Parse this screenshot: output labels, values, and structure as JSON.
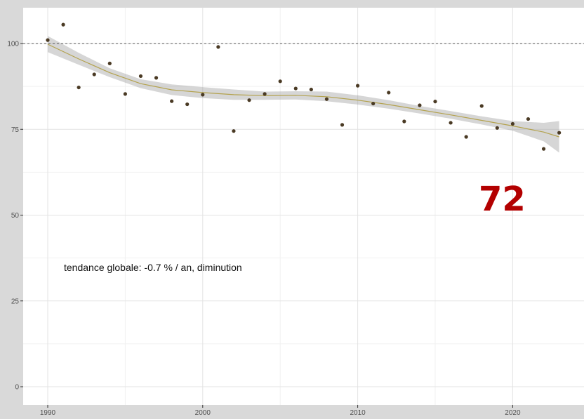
{
  "chart_data": {
    "type": "scatter",
    "title": "",
    "xlabel": "",
    "ylabel": "",
    "xlim": [
      1989,
      2024.5
    ],
    "ylim": [
      -3,
      103
    ],
    "x_ticks": [
      1990,
      2000,
      2010,
      2020
    ],
    "y_ticks": [
      0,
      25,
      50,
      75,
      100
    ],
    "grid": true,
    "reference_line": 100,
    "annotation": "tendance globale: -0.7 % / an, diminution",
    "badge": "72",
    "points": [
      {
        "x": 1990,
        "y": 101
      },
      {
        "x": 1991,
        "y": 105.5
      },
      {
        "x": 1992,
        "y": 87.2
      },
      {
        "x": 1993,
        "y": 91
      },
      {
        "x": 1994,
        "y": 94.2
      },
      {
        "x": 1995,
        "y": 85.3
      },
      {
        "x": 1996,
        "y": 90.5
      },
      {
        "x": 1997,
        "y": 90
      },
      {
        "x": 1998,
        "y": 83.2
      },
      {
        "x": 1999,
        "y": 82.3
      },
      {
        "x": 2000,
        "y": 85.1
      },
      {
        "x": 2001,
        "y": 99
      },
      {
        "x": 2002,
        "y": 74.5
      },
      {
        "x": 2003,
        "y": 83.5
      },
      {
        "x": 2004,
        "y": 85.3
      },
      {
        "x": 2005,
        "y": 89
      },
      {
        "x": 2006,
        "y": 86.9
      },
      {
        "x": 2007,
        "y": 86.6
      },
      {
        "x": 2008,
        "y": 83.8
      },
      {
        "x": 2009,
        "y": 76.3
      },
      {
        "x": 2010,
        "y": 87.7
      },
      {
        "x": 2011,
        "y": 82.5
      },
      {
        "x": 2012,
        "y": 85.7
      },
      {
        "x": 2013,
        "y": 77.3
      },
      {
        "x": 2014,
        "y": 82
      },
      {
        "x": 2015,
        "y": 83.1
      },
      {
        "x": 2016,
        "y": 76.9
      },
      {
        "x": 2017,
        "y": 72.8
      },
      {
        "x": 2018,
        "y": 81.8
      },
      {
        "x": 2019,
        "y": 75.4
      },
      {
        "x": 2020,
        "y": 76.6
      },
      {
        "x": 2021,
        "y": 78
      },
      {
        "x": 2022,
        "y": 69.3
      },
      {
        "x": 2023,
        "y": 74
      }
    ],
    "smooth": {
      "x": [
        1990,
        1992,
        1994,
        1996,
        1998,
        2000,
        2002,
        2004,
        2006,
        2008,
        2010,
        2012,
        2014,
        2016,
        2018,
        2020,
        2022,
        2023
      ],
      "y": [
        99.8,
        95.5,
        91.5,
        88.3,
        86.5,
        85.7,
        85.1,
        84.8,
        84.9,
        84.5,
        83.5,
        82.2,
        80.7,
        79.2,
        77.6,
        76,
        74.2,
        72.8
      ],
      "lower": [
        97.5,
        93.8,
        90.2,
        87,
        85,
        84.1,
        83.6,
        83.6,
        83.7,
        83.2,
        82.2,
        81,
        79.6,
        78.1,
        76.4,
        74.6,
        71.5,
        68.2
      ],
      "upper": [
        102.2,
        97.3,
        92.8,
        89.6,
        88.1,
        87.3,
        86.6,
        86,
        86.1,
        86,
        84.9,
        83.5,
        81.8,
        80.3,
        78.8,
        77.4,
        76.9,
        77.4
      ]
    },
    "colors": {
      "panel": "#ffffff",
      "grid_major": "#e3e3e3",
      "grid_minor": "#f1f1f1",
      "point": "#4a3a24",
      "smooth_line": "#b3a24e",
      "ribbon": "#999999",
      "ref_line": "#555555",
      "badge": "#b30000"
    }
  }
}
